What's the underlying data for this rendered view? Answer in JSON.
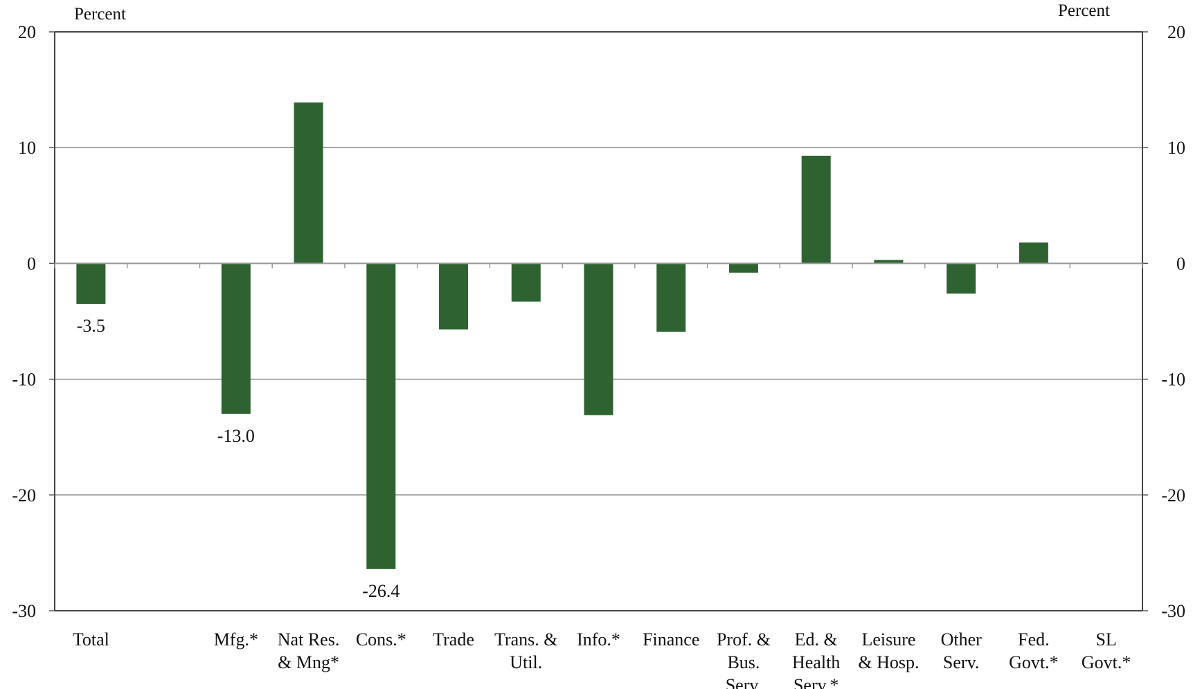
{
  "chart_data": {
    "type": "bar",
    "title": "",
    "ylabel_left": "Percent",
    "ylabel_right": "Percent",
    "ylim": [
      -30,
      20
    ],
    "yticks": [
      20,
      10,
      0,
      -10,
      -20,
      -30
    ],
    "grid": true,
    "bar_color": "#2e6331",
    "categories": [
      [
        "Total"
      ],
      [
        ""
      ],
      [
        "Mfg.*"
      ],
      [
        "Nat Res.",
        "& Mng*"
      ],
      [
        "Cons.*"
      ],
      [
        "Trade"
      ],
      [
        "Trans. &",
        "Util."
      ],
      [
        "Info.*"
      ],
      [
        "Finance"
      ],
      [
        "Prof. &",
        "Bus.",
        "Serv."
      ],
      [
        "Ed. &",
        "Health",
        "Serv.*"
      ],
      [
        "Leisure",
        "& Hosp."
      ],
      [
        "Other",
        "Serv."
      ],
      [
        "Fed.",
        "Govt.*"
      ],
      [
        "SL",
        "Govt.*"
      ]
    ],
    "values": [
      -3.5,
      null,
      -13.0,
      13.9,
      -26.4,
      -5.7,
      -3.3,
      -13.1,
      -5.9,
      -0.8,
      9.3,
      0.3,
      -2.6,
      1.8,
      0.05
    ],
    "data_labels": [
      "-3.5",
      null,
      "-13.0",
      null,
      "-26.4",
      null,
      null,
      null,
      null,
      null,
      null,
      null,
      null,
      null,
      null
    ]
  }
}
